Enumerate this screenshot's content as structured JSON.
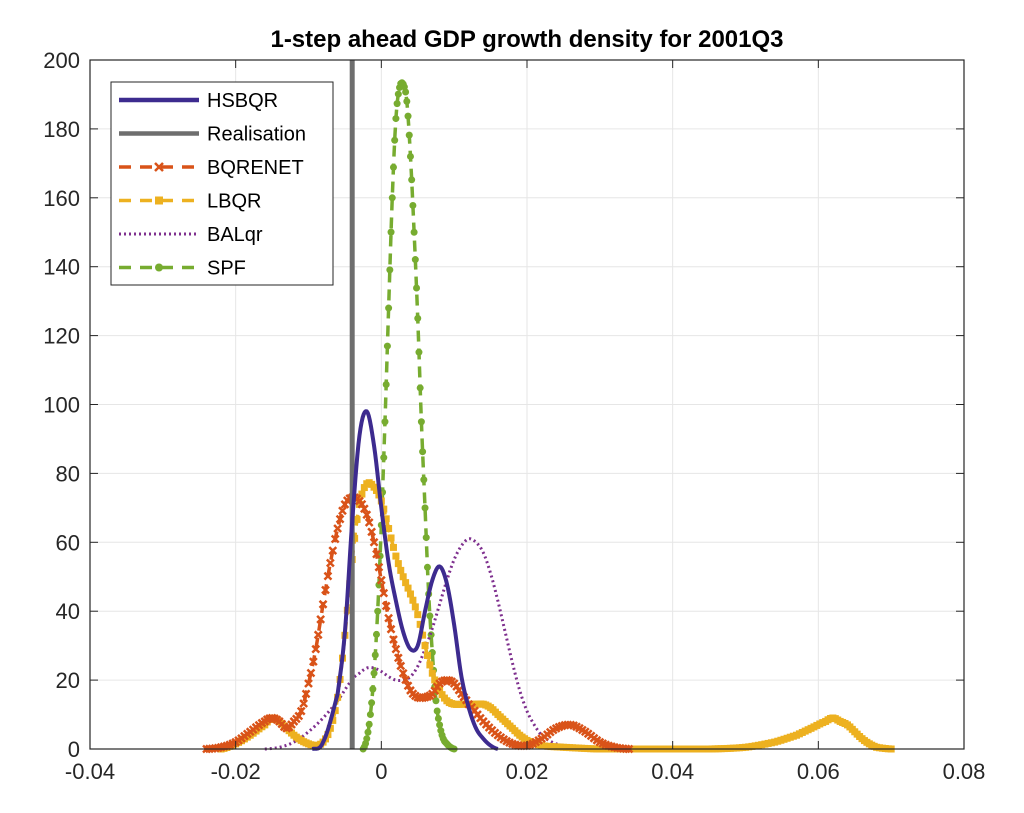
{
  "chart_data": {
    "type": "line",
    "title": "1-step ahead GDP growth density for 2001Q3",
    "xlabel": "",
    "ylabel": "",
    "xlim": [
      -0.04,
      0.08
    ],
    "ylim": [
      0,
      200
    ],
    "x_ticks": [
      "-0.04",
      "-0.02",
      "0",
      "0.02",
      "0.04",
      "0.06",
      "0.08"
    ],
    "y_ticks": [
      "0",
      "20",
      "40",
      "60",
      "80",
      "100",
      "120",
      "140",
      "160",
      "180",
      "200"
    ],
    "grid": true,
    "legend_position": "top-left",
    "series": [
      {
        "name": "HSBQR",
        "color": "#3d2b8f",
        "style": "solid",
        "x": [
          -0.0095,
          -0.008,
          -0.006,
          -0.005,
          -0.004,
          -0.003,
          -0.002,
          -0.001,
          0,
          0.001,
          0.002,
          0.003,
          0.004,
          0.005,
          0.006,
          0.007,
          0.008,
          0.009,
          0.01,
          0.011,
          0.012,
          0.013,
          0.014,
          0.015,
          0.016
        ],
        "y": [
          0,
          2,
          16,
          34,
          66,
          91,
          98,
          88,
          70,
          54,
          43,
          34,
          29,
          30,
          40,
          49,
          53,
          48,
          36,
          21,
          12,
          6,
          3,
          1,
          0
        ]
      },
      {
        "name": "Realisation",
        "color": "#6e6e6e",
        "style": "vertical",
        "x": [
          -0.004
        ]
      },
      {
        "name": "BQRENET",
        "color": "#d95319",
        "style": "dash-marker",
        "x": [
          -0.024,
          -0.022,
          -0.02,
          -0.018,
          -0.016,
          -0.015,
          -0.014,
          -0.013,
          -0.012,
          -0.011,
          -0.01,
          -0.009,
          -0.008,
          -0.007,
          -0.006,
          -0.005,
          -0.004,
          -0.003,
          -0.002,
          -0.001,
          0,
          0.001,
          0.002,
          0.003,
          0.004,
          0.005,
          0.006,
          0.007,
          0.008,
          0.009,
          0.01,
          0.011,
          0.012,
          0.014,
          0.016,
          0.018,
          0.02,
          0.022,
          0.024,
          0.026,
          0.028,
          0.03,
          0.032,
          0.034
        ],
        "y": [
          0,
          0.5,
          2,
          5,
          8,
          9,
          8,
          6,
          8,
          11,
          19,
          29,
          42,
          54,
          64,
          71,
          73,
          72,
          68,
          60,
          49,
          38,
          29,
          22,
          17,
          15,
          15,
          16,
          19,
          20,
          19,
          16,
          13,
          8,
          4,
          1.5,
          1,
          3,
          6,
          7,
          5,
          2,
          0.5,
          0
        ]
      },
      {
        "name": "LBQR",
        "color": "#edb120",
        "style": "dash-marker",
        "x": [
          -0.022,
          -0.02,
          -0.018,
          -0.016,
          -0.015,
          -0.014,
          -0.013,
          -0.012,
          -0.011,
          -0.01,
          -0.009,
          -0.008,
          -0.007,
          -0.006,
          -0.005,
          -0.004,
          -0.003,
          -0.002,
          -0.001,
          0,
          0.001,
          0.002,
          0.003,
          0.004,
          0.005,
          0.006,
          0.007,
          0.008,
          0.009,
          0.01,
          0.011,
          0.012,
          0.013,
          0.014,
          0.015,
          0.016,
          0.017,
          0.018,
          0.019,
          0.02,
          0.022,
          0.025,
          0.03,
          0.035,
          0.04,
          0.045,
          0.05,
          0.054,
          0.057,
          0.059,
          0.061,
          0.062,
          0.063,
          0.064,
          0.065,
          0.066,
          0.067,
          0.068,
          0.07
        ],
        "y": [
          0,
          1.5,
          4,
          7,
          9,
          8,
          6,
          4,
          2.5,
          1.5,
          1,
          2,
          6,
          15,
          33,
          55,
          71,
          77,
          76,
          72,
          64,
          56,
          50,
          45,
          39,
          30,
          22,
          17,
          14,
          13,
          13,
          13,
          13,
          13,
          12,
          10,
          8,
          6,
          4,
          2.5,
          1,
          0.5,
          0,
          0,
          0,
          0,
          0.5,
          2,
          4,
          6,
          8,
          9,
          8,
          7,
          5,
          3,
          1.5,
          0.5,
          0
        ]
      },
      {
        "name": "BALqr",
        "color": "#7e2f8e",
        "style": "dotted",
        "x": [
          -0.016,
          -0.014,
          -0.012,
          -0.01,
          -0.008,
          -0.006,
          -0.004,
          -0.003,
          -0.002,
          -0.001,
          0,
          0.001,
          0.002,
          0.003,
          0.004,
          0.005,
          0.006,
          0.007,
          0.008,
          0.009,
          0.01,
          0.011,
          0.012,
          0.013,
          0.014,
          0.015,
          0.016,
          0.017,
          0.018,
          0.019,
          0.02,
          0.021,
          0.022,
          0.023,
          0.024,
          0.025,
          0.026,
          0.027,
          0.028
        ],
        "y": [
          0,
          0.5,
          2,
          5,
          9,
          14,
          20,
          22,
          23.5,
          23.5,
          22.5,
          21,
          20,
          20,
          21,
          24,
          29,
          35,
          42,
          49,
          55,
          59,
          61,
          60,
          57,
          51,
          43,
          34,
          25,
          17,
          11,
          7,
          4,
          2.5,
          1.5,
          1,
          0.5,
          0.3,
          0
        ]
      },
      {
        "name": "SPF",
        "color": "#77ac30",
        "style": "dash-marker",
        "x": [
          -0.0025,
          -0.002,
          -0.0015,
          -0.001,
          -0.0005,
          0,
          0.0005,
          0.001,
          0.0015,
          0.002,
          0.0025,
          0.003,
          0.0035,
          0.004,
          0.0045,
          0.005,
          0.0055,
          0.006,
          0.0065,
          0.007,
          0.0075,
          0.008,
          0.0085,
          0.009,
          0.0095,
          0.01
        ],
        "y": [
          0,
          3,
          10,
          22,
          40,
          65,
          95,
          128,
          160,
          183,
          192,
          193,
          188,
          172,
          150,
          125,
          95,
          70,
          45,
          28,
          14,
          7,
          3,
          1.5,
          0.5,
          0
        ]
      }
    ]
  }
}
